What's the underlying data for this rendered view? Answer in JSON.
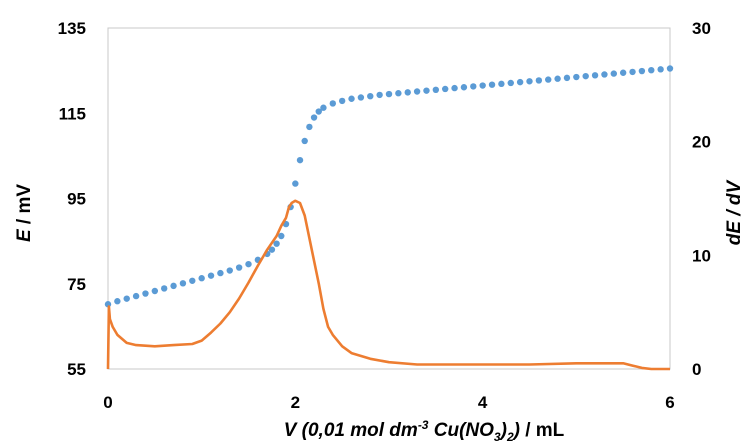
{
  "chart_data": {
    "type": "scatter",
    "x_axis": {
      "label_parts": {
        "prefix": "V (0,01 mol dm",
        "exp": "-3",
        "mid": " Cu(NO",
        "sub1": "3",
        "close": ")",
        "sub2": "2",
        "tail": ")",
        "unit": " / mL"
      },
      "range": [
        0,
        6
      ],
      "ticks": [
        "0",
        "2",
        "4",
        "6"
      ]
    },
    "y_left": {
      "label_italic": "E",
      "label_unit": " / mV",
      "range": [
        55,
        135
      ],
      "ticks": [
        "55",
        "75",
        "95",
        "115",
        "135"
      ]
    },
    "y_right": {
      "label": "dE / dV",
      "range": [
        0,
        30
      ],
      "ticks": [
        "0",
        "10",
        "20",
        "30"
      ]
    },
    "grid": false,
    "legend": "none",
    "series": [
      {
        "axis": "left",
        "style": "dotted",
        "color": "#5b9bd5",
        "x": [
          0.0,
          0.1,
          0.2,
          0.3,
          0.4,
          0.5,
          0.6,
          0.7,
          0.8,
          0.9,
          1.0,
          1.1,
          1.2,
          1.3,
          1.4,
          1.5,
          1.6,
          1.7,
          1.75,
          1.8,
          1.85,
          1.9,
          1.95,
          2.0,
          2.05,
          2.1,
          2.15,
          2.2,
          2.25,
          2.3,
          2.4,
          2.5,
          2.6,
          2.7,
          2.8,
          2.9,
          3.0,
          3.1,
          3.2,
          3.3,
          3.4,
          3.5,
          3.6,
          3.7,
          3.8,
          3.9,
          4.0,
          4.1,
          4.2,
          4.3,
          4.4,
          4.5,
          4.6,
          4.7,
          4.8,
          4.9,
          5.0,
          5.1,
          5.2,
          5.3,
          5.4,
          5.5,
          5.6,
          5.7,
          5.8,
          5.9,
          6.0
        ],
        "y": [
          70.2,
          70.9,
          71.5,
          72.1,
          72.7,
          73.3,
          73.9,
          74.5,
          75.1,
          75.7,
          76.3,
          76.9,
          77.5,
          78.1,
          78.8,
          79.6,
          80.6,
          82.0,
          83.0,
          84.4,
          86.2,
          89.0,
          93.0,
          98.5,
          104.0,
          108.5,
          111.8,
          114.0,
          115.4,
          116.3,
          117.3,
          117.9,
          118.4,
          118.7,
          119.0,
          119.3,
          119.5,
          119.7,
          119.9,
          120.1,
          120.3,
          120.5,
          120.7,
          120.9,
          121.1,
          121.3,
          121.5,
          121.7,
          121.9,
          122.1,
          122.3,
          122.5,
          122.7,
          122.9,
          123.1,
          123.3,
          123.5,
          123.7,
          123.9,
          124.1,
          124.3,
          124.5,
          124.7,
          124.9,
          125.1,
          125.3,
          125.5
        ]
      },
      {
        "axis": "right",
        "style": "line",
        "color": "#ed7d31",
        "x": [
          0.0,
          0.01,
          0.02,
          0.05,
          0.1,
          0.2,
          0.3,
          0.5,
          0.7,
          0.9,
          1.0,
          1.1,
          1.2,
          1.3,
          1.4,
          1.5,
          1.6,
          1.7,
          1.8,
          1.85,
          1.9,
          1.93,
          1.96,
          2.0,
          2.05,
          2.1,
          2.15,
          2.2,
          2.25,
          2.3,
          2.35,
          2.4,
          2.5,
          2.6,
          2.8,
          3.0,
          3.3,
          3.5,
          4.0,
          4.5,
          5.0,
          5.2,
          5.4,
          5.5,
          5.6,
          5.7,
          5.8,
          6.0
        ],
        "y": [
          0,
          5.5,
          4.4,
          3.7,
          3.0,
          2.3,
          2.1,
          2.0,
          2.1,
          2.2,
          2.5,
          3.2,
          4.0,
          5.0,
          6.2,
          7.6,
          9.1,
          10.5,
          11.7,
          12.6,
          13.3,
          14.2,
          14.6,
          14.8,
          14.6,
          13.5,
          11.5,
          9.5,
          7.5,
          5.3,
          3.7,
          3.0,
          2.0,
          1.4,
          0.9,
          0.6,
          0.4,
          0.4,
          0.4,
          0.4,
          0.5,
          0.5,
          0.5,
          0.5,
          0.3,
          0.1,
          0.0,
          0.0
        ]
      }
    ]
  }
}
